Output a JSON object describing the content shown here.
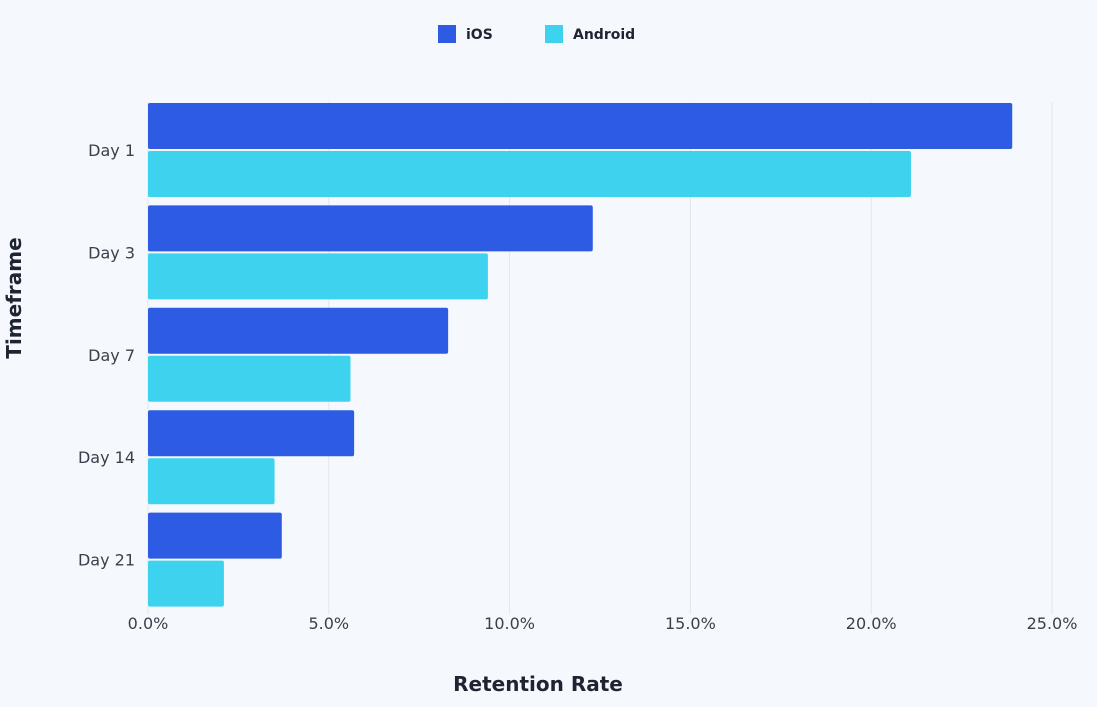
{
  "chart_data": {
    "type": "bar",
    "orientation": "horizontal",
    "categories": [
      "Day 1",
      "Day 3",
      "Day 7",
      "Day 14",
      "Day 21"
    ],
    "series": [
      {
        "name": "iOS",
        "color": "#2d5be3",
        "values": [
          23.9,
          12.3,
          8.3,
          5.7,
          3.7
        ]
      },
      {
        "name": "Android",
        "color": "#3dd3ef",
        "values": [
          21.1,
          9.4,
          5.6,
          3.5,
          2.1
        ]
      }
    ],
    "xlabel": "Retention Rate",
    "ylabel": "Timeframe",
    "xlim": [
      0,
      25
    ],
    "xticks": [
      "0.0%",
      "5.0%",
      "10.0%",
      "15.0%",
      "20.0%",
      "25.0%"
    ],
    "grid": "vertical",
    "legend": "top-center"
  }
}
